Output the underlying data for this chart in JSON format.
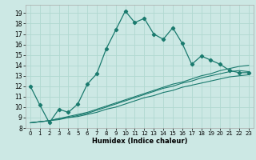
{
  "title": "",
  "xlabel": "Humidex (Indice chaleur)",
  "bg_color": "#cce8e4",
  "grid_color": "#b0d8d0",
  "line_color": "#1a7a6e",
  "xlim": [
    -0.5,
    23.5
  ],
  "ylim": [
    8,
    19.8
  ],
  "yticks": [
    8,
    9,
    10,
    11,
    12,
    13,
    14,
    15,
    16,
    17,
    18,
    19
  ],
  "xticks": [
    0,
    1,
    2,
    3,
    4,
    5,
    6,
    7,
    8,
    9,
    10,
    11,
    12,
    13,
    14,
    15,
    16,
    17,
    18,
    19,
    20,
    21,
    22,
    23
  ],
  "main_series": [
    12.0,
    10.2,
    8.5,
    9.8,
    9.5,
    10.3,
    12.2,
    13.2,
    15.6,
    17.4,
    19.2,
    18.1,
    18.5,
    17.0,
    16.5,
    17.6,
    16.1,
    14.1,
    14.9,
    14.5,
    14.1,
    13.5,
    13.3,
    13.3
  ],
  "linear_series": [
    [
      8.5,
      8.6,
      8.7,
      8.9,
      9.1,
      9.3,
      9.5,
      9.8,
      10.1,
      10.4,
      10.7,
      11.0,
      11.3,
      11.6,
      11.9,
      12.2,
      12.4,
      12.7,
      13.0,
      13.2,
      13.5,
      13.7,
      13.9,
      14.0
    ],
    [
      8.5,
      8.6,
      8.7,
      8.9,
      9.0,
      9.2,
      9.4,
      9.7,
      10.0,
      10.3,
      10.6,
      10.9,
      11.2,
      11.5,
      11.8,
      12.0,
      12.3,
      12.5,
      12.8,
      13.0,
      13.2,
      13.4,
      13.5,
      13.4
    ],
    [
      8.5,
      8.6,
      8.7,
      8.8,
      9.0,
      9.1,
      9.3,
      9.5,
      9.8,
      10.0,
      10.3,
      10.6,
      10.9,
      11.1,
      11.4,
      11.6,
      11.9,
      12.1,
      12.3,
      12.5,
      12.7,
      12.9,
      13.0,
      13.1
    ]
  ]
}
